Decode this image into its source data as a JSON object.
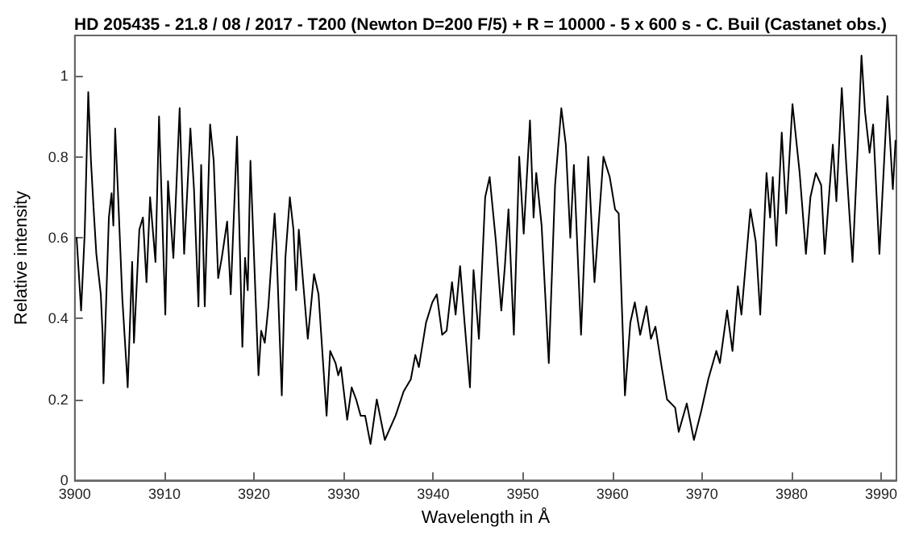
{
  "chart_data": {
    "type": "line",
    "title": "HD 205435 - 21.8 / 08 / 2017 - T200 (Newton D=200 F/5) + R = 10000 - 5 x 600 s - C. Buil (Castanet obs.)",
    "xlabel": "Wavelength in Å",
    "ylabel": "Relative intensity",
    "x": [
      3900.2,
      3900.7,
      3901.1,
      3901.5,
      3901.8,
      3902.1,
      3902.4,
      3902.9,
      3903.1,
      3903.2,
      3903.8,
      3904.1,
      3904.3,
      3904.5,
      3904.8,
      3905.3,
      3905.8,
      3905.9,
      3906.4,
      3906.6,
      3907.2,
      3907.6,
      3908.0,
      3908.4,
      3909.0,
      3909.4,
      3910.1,
      3910.4,
      3911.0,
      3911.7,
      3912.2,
      3912.9,
      3913.3,
      3913.8,
      3914.1,
      3914.5,
      3915.1,
      3915.5,
      3916.0,
      3916.4,
      3917.0,
      3917.4,
      3918.1,
      3918.7,
      3919.0,
      3919.3,
      3919.6,
      3920.5,
      3920.8,
      3921.2,
      3921.6,
      3922.3,
      3922.5,
      3923.1,
      3923.5,
      3924.0,
      3924.4,
      3924.7,
      3925.0,
      3926.0,
      3926.7,
      3927.2,
      3928.1,
      3928.5,
      3929.1,
      3929.4,
      3929.7,
      3930.4,
      3930.9,
      3931.4,
      3931.9,
      3932.4,
      3933.0,
      3933.7,
      3934.6,
      3935.8,
      3936.7,
      3937.5,
      3938.0,
      3938.4,
      3939.2,
      3939.9,
      3940.4,
      3941.0,
      3941.5,
      3942.1,
      3942.5,
      3943.0,
      3943.5,
      3944.1,
      3944.5,
      3945.1,
      3945.8,
      3946.3,
      3947.0,
      3947.6,
      3948.0,
      3948.4,
      3949.0,
      3949.6,
      3950.1,
      3950.8,
      3951.2,
      3951.5,
      3952.1,
      3952.9,
      3953.6,
      3954.3,
      3954.8,
      3955.3,
      3955.7,
      3956.5,
      3957.3,
      3958.0,
      3959.0,
      3959.7,
      3960.3,
      3960.7,
      3961.4,
      3962.0,
      3962.5,
      3963.1,
      3963.8,
      3964.3,
      3964.8,
      3965.5,
      3966.1,
      3967.0,
      3967.4,
      3968.3,
      3969.1,
      3969.9,
      3970.7,
      3971.6,
      3972.0,
      3972.8,
      3973.4,
      3974.0,
      3974.4,
      3975.4,
      3976.0,
      3976.5,
      3977.2,
      3977.6,
      3977.9,
      3978.3,
      3978.9,
      3979.4,
      3980.1,
      3980.9,
      3981.6,
      3982.1,
      3982.7,
      3983.3,
      3983.7,
      3984.6,
      3985.0,
      3985.6,
      3986.1,
      3986.8,
      3987.4,
      3987.8,
      3988.2,
      3988.7,
      3989.1,
      3989.8,
      3990.7,
      3991.3,
      3991.6
    ],
    "series": [
      {
        "color": "#000000",
        "values": [
          0.6,
          0.42,
          0.61,
          0.96,
          0.79,
          0.67,
          0.56,
          0.46,
          0.36,
          0.24,
          0.65,
          0.71,
          0.63,
          0.87,
          0.72,
          0.45,
          0.27,
          0.23,
          0.54,
          0.34,
          0.62,
          0.65,
          0.49,
          0.7,
          0.54,
          0.9,
          0.41,
          0.74,
          0.55,
          0.92,
          0.56,
          0.87,
          0.72,
          0.43,
          0.78,
          0.43,
          0.88,
          0.79,
          0.5,
          0.55,
          0.64,
          0.46,
          0.85,
          0.33,
          0.55,
          0.47,
          0.79,
          0.26,
          0.37,
          0.34,
          0.43,
          0.66,
          0.58,
          0.21,
          0.55,
          0.7,
          0.62,
          0.47,
          0.62,
          0.35,
          0.51,
          0.46,
          0.16,
          0.32,
          0.29,
          0.26,
          0.28,
          0.15,
          0.23,
          0.2,
          0.16,
          0.16,
          0.09,
          0.2,
          0.1,
          0.16,
          0.22,
          0.25,
          0.31,
          0.28,
          0.39,
          0.44,
          0.46,
          0.36,
          0.37,
          0.49,
          0.41,
          0.53,
          0.39,
          0.23,
          0.52,
          0.35,
          0.7,
          0.75,
          0.59,
          0.42,
          0.53,
          0.67,
          0.36,
          0.8,
          0.61,
          0.89,
          0.65,
          0.76,
          0.63,
          0.29,
          0.73,
          0.92,
          0.83,
          0.6,
          0.78,
          0.36,
          0.8,
          0.49,
          0.8,
          0.75,
          0.67,
          0.66,
          0.21,
          0.39,
          0.44,
          0.36,
          0.43,
          0.35,
          0.38,
          0.28,
          0.2,
          0.18,
          0.12,
          0.19,
          0.1,
          0.17,
          0.25,
          0.32,
          0.29,
          0.42,
          0.32,
          0.48,
          0.41,
          0.67,
          0.59,
          0.41,
          0.76,
          0.65,
          0.75,
          0.58,
          0.86,
          0.66,
          0.93,
          0.76,
          0.56,
          0.7,
          0.76,
          0.73,
          0.56,
          0.83,
          0.69,
          0.97,
          0.78,
          0.54,
          0.83,
          1.05,
          0.91,
          0.81,
          0.88,
          0.56,
          0.95,
          0.72,
          0.84
        ]
      }
    ],
    "xlim": [
      3900,
      3991.7
    ],
    "xticks": [
      3900,
      3910,
      3920,
      3930,
      3940,
      3950,
      3960,
      3970,
      3980,
      3990
    ],
    "ylim": [
      0,
      1.1
    ],
    "yticks": [
      0,
      0.2,
      0.4,
      0.6,
      0.8,
      1
    ],
    "marker": "none",
    "line_style": "solid"
  }
}
